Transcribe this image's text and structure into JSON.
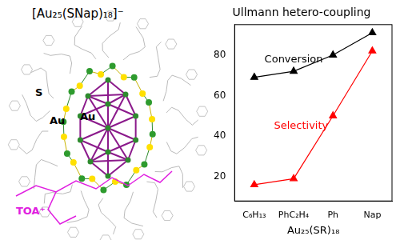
{
  "figure": {
    "title": "[Au₂₅(SNap)₁₈]⁻",
    "labels": [
      "S",
      "Au",
      "Au",
      "TOA⁺"
    ]
  },
  "chart_data": {
    "type": "line",
    "title": "Ullmann hetero-coupling",
    "x_label": "Au₂₅(SR)₁₈",
    "categories": [
      "C₆H₁₃",
      "PhC₂H₄",
      "Ph",
      "Nap"
    ],
    "series": [
      {
        "name": "Conversion",
        "color": "#000000",
        "marker": "triangle",
        "values": [
          69,
          72,
          80,
          91
        ]
      },
      {
        "name": "Selectivity",
        "color": "#ff0000",
        "marker": "triangle",
        "values": [
          16,
          19,
          50,
          82
        ]
      }
    ],
    "ylim": [
      8,
      95
    ],
    "yticks": [
      20,
      40,
      60,
      80
    ],
    "grid": false
  }
}
